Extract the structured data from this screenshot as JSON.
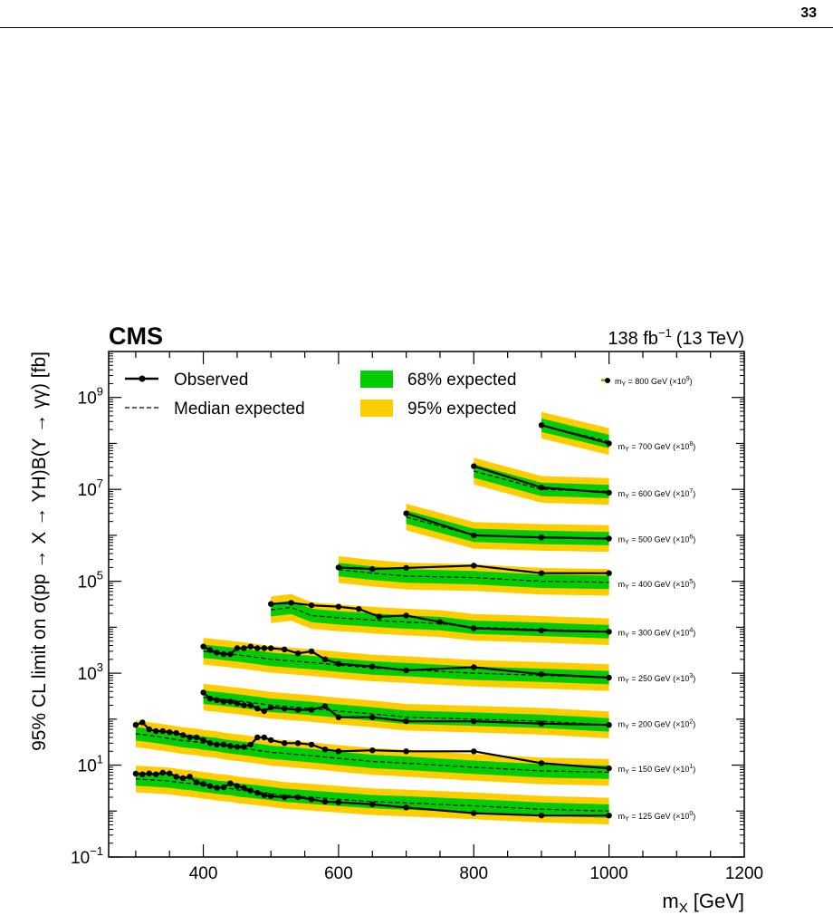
{
  "page": {
    "page_number": "33"
  },
  "chart_data": {
    "type": "line",
    "experiment": "CMS",
    "lumi_label": "138 fb",
    "lumi_exponent": "−1",
    "energy_label": "(13 TeV)",
    "xlabel": "m",
    "xlabel_sub": "X",
    "xlabel_unit": "[GeV]",
    "ylabel": "95% CL limit on σ(pp → X → YH)B(Y → γγ) [fb]",
    "xlim": [
      260,
      1200
    ],
    "ylim": [
      0.1,
      10000000000
    ],
    "yscale": "log",
    "x_ticks": [
      400,
      600,
      800,
      1000,
      1200
    ],
    "y_ticks": [
      {
        "value": 0.1,
        "base": "10",
        "exp": "−1"
      },
      {
        "value": 10,
        "base": "10",
        "exp": "1"
      },
      {
        "value": 1000,
        "base": "10",
        "exp": "3"
      },
      {
        "value": 100000,
        "base": "10",
        "exp": "5"
      },
      {
        "value": 10000000,
        "base": "10",
        "exp": "7"
      },
      {
        "value": 1000000000,
        "base": "10",
        "exp": "9"
      }
    ],
    "legend": {
      "observed": "Observed",
      "median": "Median expected",
      "band68": "68% expected",
      "band95": "95% expected"
    },
    "colors": {
      "band68": "#00cc00",
      "band95": "#ffcc00",
      "line": "#000000"
    },
    "series": [
      {
        "label": "m",
        "label_sub": "Y",
        "label_rest": " = 125 GeV (×10",
        "label_exp": "0",
        "label_end": ")",
        "x": [
          300,
          310,
          320,
          330,
          340,
          350,
          360,
          370,
          380,
          390,
          400,
          410,
          420,
          430,
          440,
          450,
          460,
          470,
          480,
          490,
          500,
          520,
          540,
          560,
          580,
          600,
          650,
          700,
          800,
          900,
          1000
        ],
        "observed": [
          6.5,
          6.3,
          6.6,
          6.3,
          6.8,
          6.6,
          5.6,
          5.2,
          5.6,
          4.2,
          3.9,
          3.5,
          3.2,
          3.3,
          4.0,
          3.5,
          3.2,
          2.8,
          2.5,
          2.2,
          2.1,
          2.0,
          2.0,
          1.8,
          1.6,
          1.55,
          1.4,
          1.2,
          0.9,
          0.8,
          0.8
        ],
        "expected": [
          5.0,
          4.9,
          4.8,
          4.7,
          4.6,
          4.5,
          4.3,
          4.1,
          4.0,
          3.8,
          3.6,
          3.5,
          3.3,
          3.2,
          3.1,
          2.9,
          2.8,
          2.7,
          2.6,
          2.5,
          2.4,
          2.2,
          2.1,
          2.0,
          1.9,
          1.8,
          1.6,
          1.5,
          1.3,
          1.1,
          1.0
        ]
      },
      {
        "label": "m",
        "label_sub": "Y",
        "label_rest": " = 150 GeV (×10",
        "label_exp": "1",
        "label_end": ")",
        "x": [
          300,
          310,
          320,
          330,
          340,
          350,
          360,
          370,
          380,
          390,
          400,
          410,
          420,
          430,
          440,
          450,
          460,
          470,
          480,
          490,
          500,
          520,
          540,
          560,
          580,
          600,
          650,
          700,
          800,
          900,
          1000
        ],
        "observed": [
          75,
          85,
          60,
          55,
          55,
          52,
          50,
          45,
          40,
          40,
          35,
          30,
          28,
          28,
          26,
          25,
          25,
          28,
          40,
          40,
          35,
          30,
          30,
          28,
          22,
          20,
          21,
          20,
          20,
          11,
          8.5
        ],
        "expected": [
          48,
          46,
          44,
          42,
          40,
          38,
          36,
          34,
          33,
          32,
          30,
          29,
          28,
          26,
          25,
          24,
          23,
          22,
          21,
          20,
          19,
          18,
          17,
          16,
          15,
          14,
          12,
          11,
          9,
          7.5,
          7
        ]
      },
      {
        "label": "m",
        "label_sub": "Y",
        "label_rest": " = 200 GeV (×10",
        "label_exp": "2",
        "label_end": ")",
        "x": [
          400,
          410,
          420,
          430,
          440,
          450,
          460,
          470,
          480,
          490,
          500,
          520,
          540,
          560,
          580,
          600,
          650,
          700,
          800,
          900,
          1000
        ],
        "observed": [
          380,
          280,
          260,
          240,
          240,
          220,
          200,
          200,
          170,
          150,
          180,
          170,
          160,
          160,
          190,
          110,
          110,
          90,
          90,
          80,
          75
        ],
        "expected": [
          300,
          290,
          280,
          270,
          260,
          250,
          240,
          230,
          220,
          210,
          200,
          190,
          180,
          170,
          160,
          150,
          130,
          110,
          100,
          90,
          75
        ]
      },
      {
        "label": "m",
        "label_sub": "Y",
        "label_rest": " = 250 GeV (×10",
        "label_exp": "3",
        "label_end": ")",
        "x": [
          400,
          410,
          420,
          430,
          440,
          450,
          460,
          470,
          480,
          490,
          500,
          520,
          540,
          560,
          580,
          600,
          650,
          700,
          800,
          900,
          1000
        ],
        "observed": [
          3800,
          3200,
          2800,
          2600,
          2600,
          3500,
          3500,
          3800,
          3500,
          3500,
          3500,
          3300,
          2700,
          3000,
          2000,
          1600,
          1400,
          1150,
          1350,
          950,
          800
        ],
        "expected": [
          3000,
          2900,
          2800,
          2700,
          2600,
          2500,
          2400,
          2300,
          2200,
          2100,
          2000,
          1900,
          1800,
          1700,
          1600,
          1500,
          1300,
          1200,
          1000,
          900,
          800
        ]
      },
      {
        "label": "m",
        "label_sub": "Y",
        "label_rest": " = 300 GeV (×10",
        "label_exp": "4",
        "label_end": ")",
        "x": [
          500,
          530,
          560,
          600,
          630,
          660,
          700,
          750,
          800,
          900,
          1000
        ],
        "observed": [
          32000,
          34000,
          30000,
          28000,
          25000,
          17000,
          18000,
          13000,
          9500,
          8500,
          8000
        ],
        "expected": [
          24000,
          27000,
          18000,
          16000,
          15000,
          14000,
          13000,
          12000,
          10000,
          9000,
          8000
        ]
      },
      {
        "label": "m",
        "label_sub": "Y",
        "label_rest": " = 400 GeV (×10",
        "label_exp": "5",
        "label_end": ")",
        "x": [
          600,
          650,
          700,
          800,
          900,
          1000
        ],
        "observed": [
          200000,
          185000,
          195000,
          220000,
          150000,
          150000
        ],
        "expected": [
          180000,
          150000,
          130000,
          120000,
          100000,
          95000
        ]
      },
      {
        "label": "m",
        "label_sub": "Y",
        "label_rest": " = 500 GeV (×10",
        "label_exp": "6",
        "label_end": ")",
        "x": [
          700,
          800,
          900,
          1000
        ],
        "observed": [
          3000000,
          1000000,
          900000,
          850000
        ],
        "expected": [
          2500000,
          1000000,
          900000,
          850000
        ]
      },
      {
        "label": "m",
        "label_sub": "Y",
        "label_rest": " = 600 GeV (×10",
        "label_exp": "7",
        "label_end": ")",
        "x": [
          800,
          900,
          1000
        ],
        "observed": [
          32000000,
          11000000,
          8500000
        ],
        "expected": [
          25000000,
          10000000,
          9000000
        ]
      },
      {
        "label": "m",
        "label_sub": "Y",
        "label_rest": " = 700 GeV (×10",
        "label_exp": "8",
        "label_end": ")",
        "x": [
          900,
          1000
        ],
        "observed": [
          250000000,
          100000000
        ],
        "expected": [
          250000000,
          110000000
        ]
      },
      {
        "label": "m",
        "label_sub": "Y",
        "label_rest": " = 800 GeV (×10",
        "label_exp": "9",
        "label_end": ")",
        "x": [],
        "observed": [],
        "expected": []
      }
    ]
  }
}
